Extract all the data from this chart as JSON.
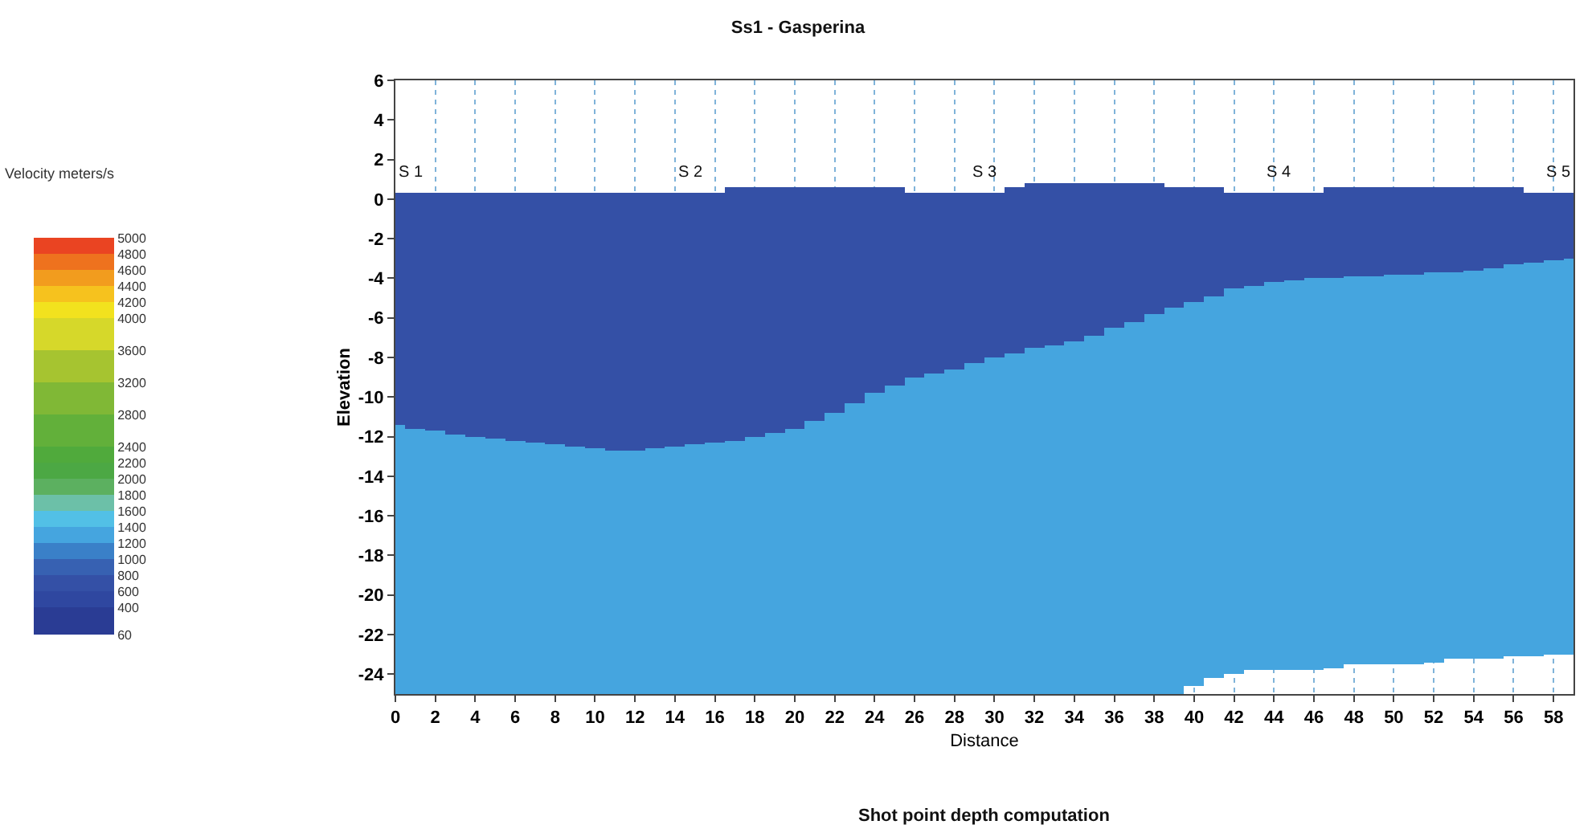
{
  "chart_data": {
    "type": "bar",
    "title": "Ss1 - Gasperina",
    "xlabel": "Distance",
    "ylabel": "Elevation",
    "clabel": "Velocity meters/s",
    "x": [
      0,
      1,
      2,
      3,
      4,
      5,
      6,
      7,
      8,
      9,
      10,
      11,
      12,
      13,
      14,
      15,
      16,
      17,
      18,
      19,
      20,
      21,
      22,
      23,
      24,
      25,
      26,
      27,
      28,
      29,
      30,
      31,
      32,
      33,
      34,
      35,
      36,
      37,
      38,
      39,
      40,
      41,
      42,
      43,
      44,
      45,
      46,
      47,
      48,
      49,
      50,
      51,
      52,
      53,
      54,
      55,
      56,
      57,
      58,
      59
    ],
    "series": [
      {
        "cvalues": [
          1300,
          1300,
          1300,
          1300,
          1300,
          1300,
          1300,
          1300,
          1300,
          1300,
          1300,
          1300,
          1300,
          1300,
          1300,
          1300,
          1300,
          1300,
          1300,
          1300,
          1300,
          1300,
          1300,
          1300,
          1300,
          1300,
          1300,
          1300,
          1300,
          1300,
          1300,
          1300,
          1300,
          1300,
          1300,
          1300,
          1300,
          1300,
          1300,
          1300,
          1300,
          1300,
          1300,
          1300,
          1300,
          1300,
          1300,
          1300,
          1300,
          1300,
          1300,
          1300,
          1300,
          1300,
          1300,
          1300,
          1300,
          1300,
          1300,
          1300
        ],
        "base": [
          -25,
          -25,
          -25,
          -25,
          -25,
          -25,
          -25,
          -25,
          -25,
          -25,
          -25,
          -25,
          -25,
          -25,
          -25,
          -25,
          -25,
          -25,
          -25,
          -25,
          -25,
          -25,
          -25,
          -25,
          -25,
          -25,
          -25,
          -25,
          -25,
          -25,
          -25,
          -25,
          -25,
          -25,
          -25,
          -25,
          -25,
          -25,
          -25,
          -25,
          -24.6,
          -24.2,
          -24.0,
          -23.8,
          -23.8,
          -23.8,
          -23.8,
          -23.7,
          -23.5,
          -23.5,
          -23.5,
          -23.5,
          -23.4,
          -23.2,
          -23.2,
          -23.2,
          -23.1,
          -23.1,
          -23.0,
          -23.0
        ],
        "values": [
          13.6,
          13.4,
          13.3,
          13.1,
          13.0,
          12.9,
          12.8,
          12.7,
          12.6,
          12.5,
          12.4,
          12.3,
          12.3,
          12.4,
          12.5,
          12.6,
          12.7,
          12.8,
          13.0,
          13.2,
          13.4,
          13.8,
          14.2,
          14.7,
          15.2,
          15.6,
          16.0,
          16.2,
          16.4,
          16.7,
          17.0,
          17.2,
          17.5,
          17.6,
          17.8,
          18.1,
          18.5,
          18.8,
          19.2,
          19.5,
          19.4,
          19.3,
          19.5,
          19.4,
          19.6,
          19.7,
          19.8,
          19.7,
          19.6,
          19.6,
          19.7,
          19.7,
          19.7,
          19.5,
          19.6,
          19.7,
          19.8,
          19.9,
          19.9,
          20.0
        ]
      },
      {
        "cvalues": [
          700,
          700,
          700,
          700,
          700,
          700,
          700,
          700,
          700,
          700,
          700,
          700,
          700,
          700,
          700,
          700,
          700,
          700,
          700,
          700,
          700,
          700,
          700,
          700,
          700,
          700,
          700,
          700,
          700,
          700,
          700,
          700,
          700,
          700,
          700,
          700,
          700,
          700,
          700,
          700,
          700,
          700,
          700,
          700,
          700,
          700,
          700,
          700,
          700,
          700,
          700,
          700,
          700,
          700,
          700,
          700,
          700,
          700,
          700,
          700
        ],
        "base": [
          -11.4,
          -11.6,
          -11.7,
          -11.9,
          -12.0,
          -12.1,
          -12.2,
          -12.3,
          -12.4,
          -12.5,
          -12.6,
          -12.7,
          -12.7,
          -12.6,
          -12.5,
          -12.4,
          -12.3,
          -12.2,
          -12.0,
          -11.8,
          -11.6,
          -11.2,
          -10.8,
          -10.3,
          -9.8,
          -9.4,
          -9.0,
          -8.8,
          -8.6,
          -8.3,
          -8.0,
          -7.8,
          -7.5,
          -7.4,
          -7.2,
          -6.9,
          -6.5,
          -6.2,
          -5.8,
          -5.5,
          -5.2,
          -4.9,
          -4.5,
          -4.4,
          -4.2,
          -4.1,
          -4.0,
          -4.0,
          -3.9,
          -3.9,
          -3.8,
          -3.8,
          -3.7,
          -3.7,
          -3.6,
          -3.5,
          -3.3,
          -3.2,
          -3.1,
          -3.0
        ],
        "values": [
          11.7,
          11.9,
          12.0,
          12.2,
          12.3,
          12.4,
          12.5,
          12.6,
          12.7,
          12.8,
          12.9,
          13.0,
          13.0,
          12.9,
          12.8,
          12.7,
          12.6,
          12.8,
          12.6,
          12.4,
          12.2,
          11.8,
          11.4,
          10.9,
          10.4,
          10.0,
          9.3,
          9.1,
          8.9,
          8.6,
          8.3,
          8.4,
          8.3,
          8.2,
          8.0,
          7.7,
          7.3,
          7.0,
          6.6,
          6.1,
          5.8,
          5.5,
          4.8,
          4.7,
          4.5,
          4.4,
          4.3,
          4.6,
          4.5,
          4.5,
          4.4,
          4.4,
          4.3,
          4.3,
          4.2,
          4.1,
          3.9,
          3.5,
          3.4,
          3.3
        ]
      }
    ],
    "xlim": [
      0,
      59
    ],
    "xticks": [
      0,
      2,
      4,
      6,
      8,
      10,
      12,
      14,
      16,
      18,
      20,
      22,
      24,
      26,
      28,
      30,
      32,
      34,
      36,
      38,
      40,
      42,
      44,
      46,
      48,
      50,
      52,
      54,
      56,
      58
    ],
    "ylim": [
      -25,
      6
    ],
    "yticks": [
      -24,
      -22,
      -20,
      -18,
      -16,
      -14,
      -12,
      -10,
      -8,
      -6,
      -4,
      -2,
      0,
      2,
      4,
      6
    ],
    "clim": [
      60,
      5000
    ],
    "cticks": [
      60,
      400,
      600,
      800,
      1000,
      1200,
      1400,
      1600,
      1800,
      2000,
      2200,
      2400,
      2800,
      3200,
      3600,
      4000,
      4200,
      4400,
      4600,
      4800,
      5000
    ],
    "grid": "x",
    "annotations": [
      "S 1",
      "S 2",
      "S 3",
      "S 4",
      "S 5",
      "Shot point depth computation"
    ]
  }
}
